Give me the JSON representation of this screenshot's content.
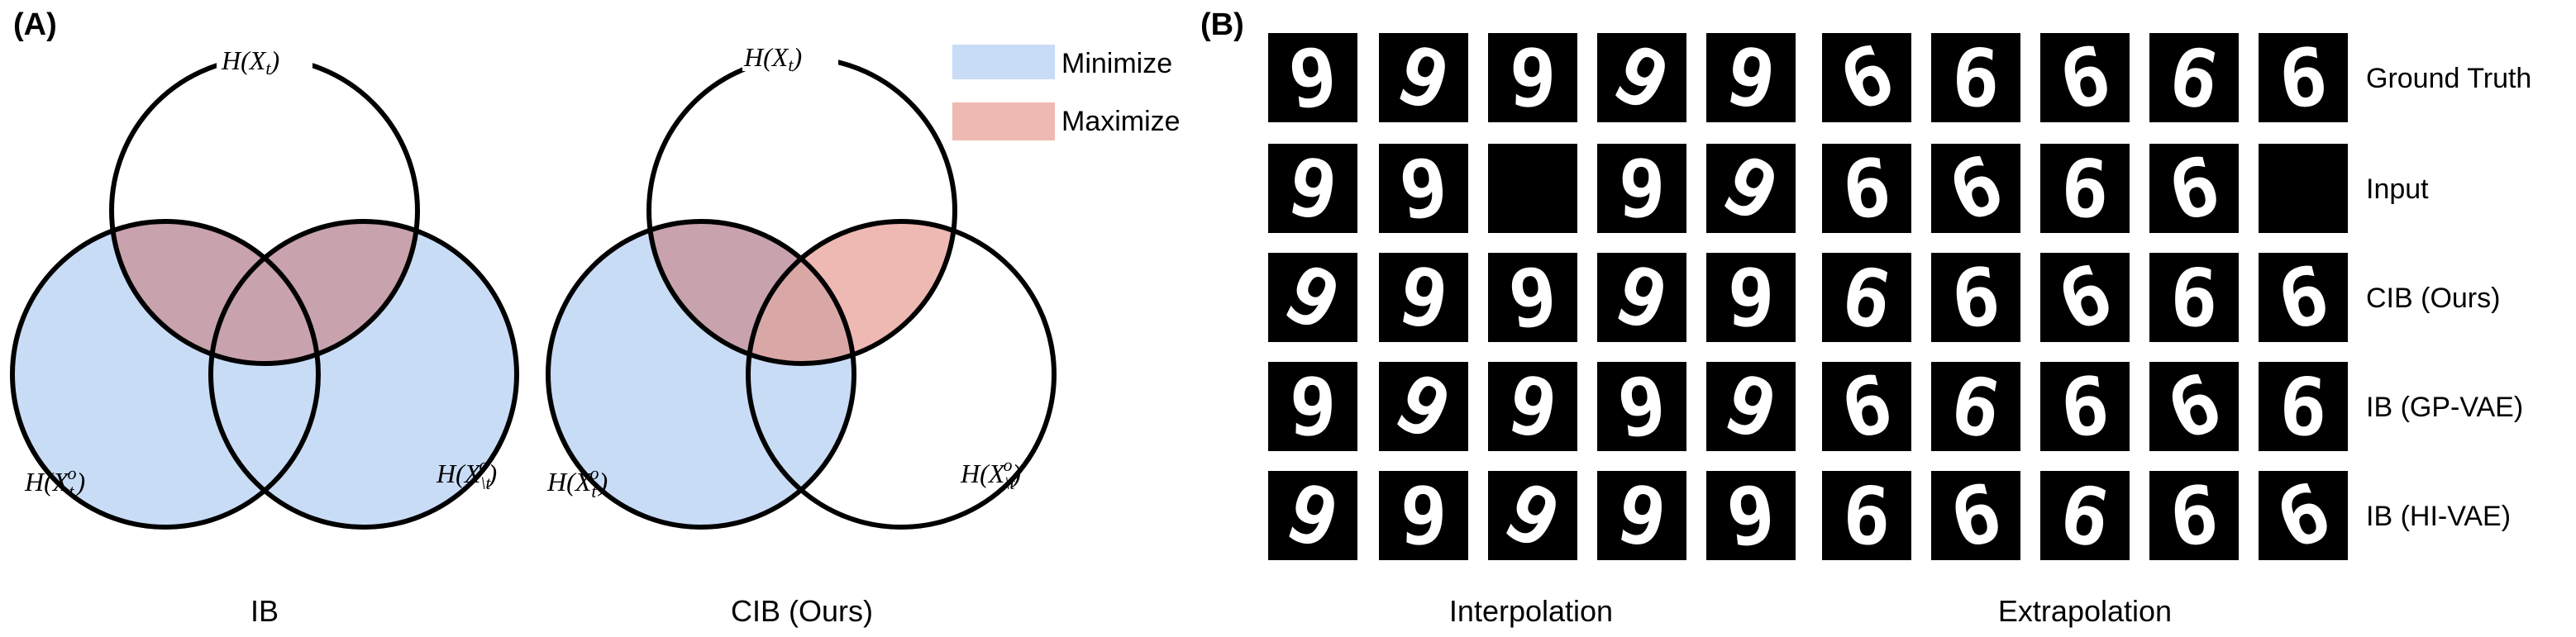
{
  "panel_a": {
    "label": "(A)",
    "legend": [
      {
        "label": "Minimize",
        "color": "#c8dcf6"
      },
      {
        "label": "Maximize",
        "color": "#efb9b3"
      }
    ],
    "overlap_color": "#c8a2ad",
    "ib": {
      "caption": "IB",
      "top_label": "H(X_t)",
      "left_label": "H(X_t^o)",
      "right_label": "H(X_\\t^o)"
    },
    "cib": {
      "caption": "CIB (Ours)",
      "top_label": "H(X_t)",
      "left_label": "H(X_t^o)",
      "right_label": "H(X_\\t^o)"
    }
  },
  "panel_b": {
    "label": "(B)",
    "rows": [
      "Ground Truth",
      "Input",
      "CIB (Ours)",
      "IB (GP-VAE)",
      "IB (HI-VAE)"
    ],
    "group_labels": [
      "Interpolation",
      "Extrapolation"
    ],
    "digits": [
      "9",
      "6"
    ],
    "blank_tiles": [
      [
        1,
        2
      ],
      [
        1,
        9
      ]
    ]
  }
}
